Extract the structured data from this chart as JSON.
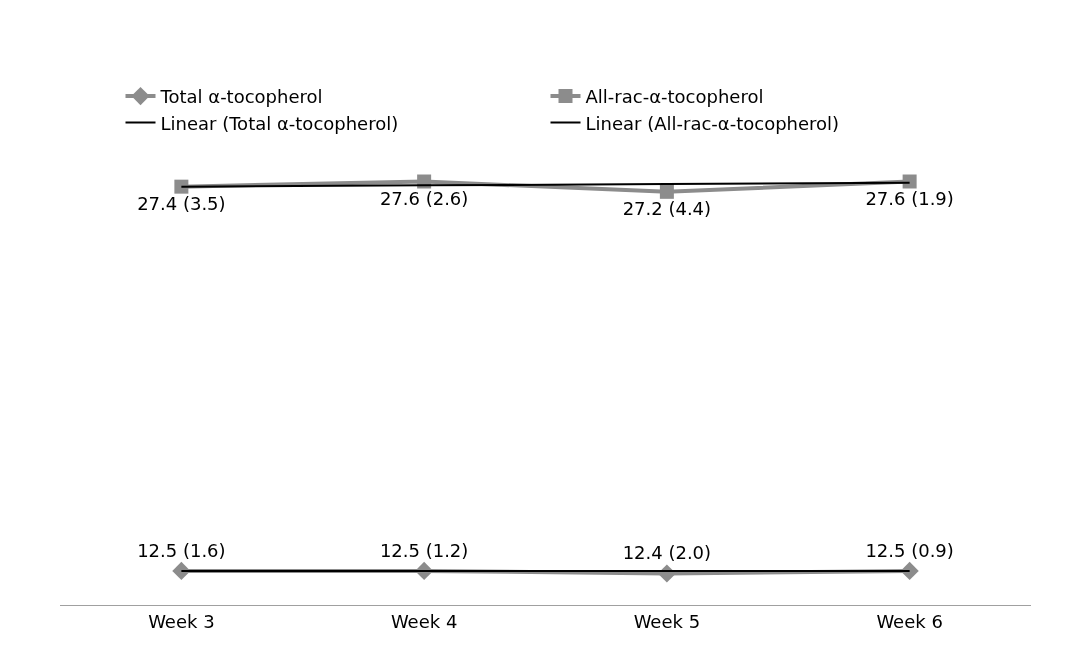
{
  "chart_data": {
    "type": "line",
    "categories": [
      "Week 3",
      "Week 4",
      "Week 5",
      "Week 6"
    ],
    "series": [
      {
        "name": "Total α-tocopherol",
        "color": "#8c8c8c",
        "marker": "diamond",
        "values": [
          12.5,
          12.5,
          12.4,
          12.5
        ],
        "value_labels": [
          "12.5 (1.6)",
          "12.5 (1.2)",
          "12.4 (2.0)",
          "12.5 (0.9)"
        ]
      },
      {
        "name": "All-rac-α-tocopherol",
        "color": "#8c8c8c",
        "marker": "square",
        "values": [
          27.4,
          27.6,
          27.2,
          27.6
        ],
        "value_labels": [
          "27.4 (3.5)",
          "27.6 (2.6)",
          "27.2 (4.4)",
          "27.6 (1.9)"
        ]
      },
      {
        "name": "Linear (Total α-tocopherol)",
        "color": "#000000",
        "marker": "none",
        "values": [
          12.5,
          12.5,
          12.5,
          12.5
        ]
      },
      {
        "name": "Linear (All-rac-α-tocopherol)",
        "color": "#000000",
        "marker": "none",
        "values": [
          27.4,
          27.45,
          27.5,
          27.55
        ]
      }
    ],
    "tick_labels": "x",
    "legend": "top"
  }
}
